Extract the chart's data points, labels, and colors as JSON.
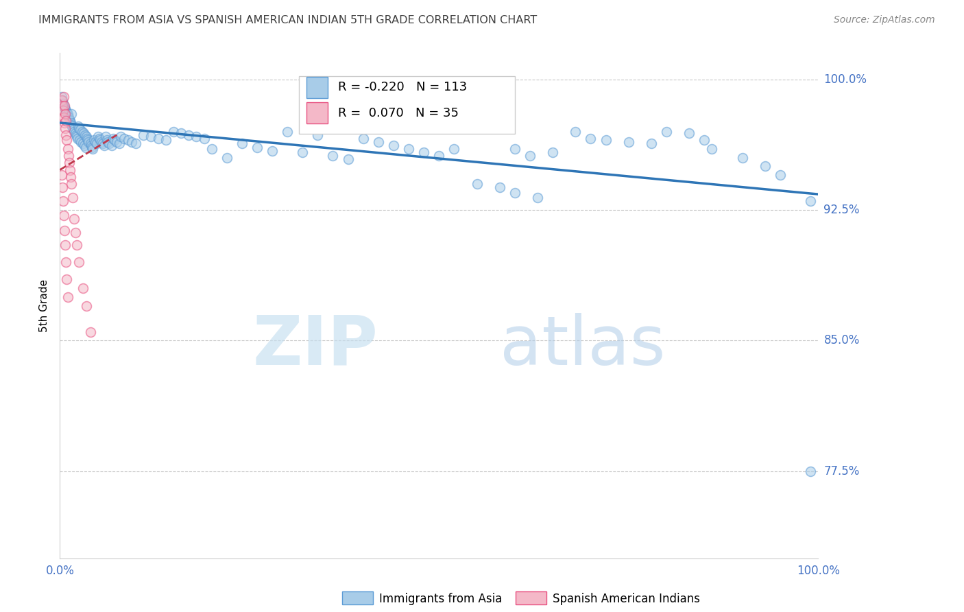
{
  "title": "IMMIGRANTS FROM ASIA VS SPANISH AMERICAN INDIAN 5TH GRADE CORRELATION CHART",
  "source_text": "Source: ZipAtlas.com",
  "ylabel": "5th Grade",
  "watermark_zip": "ZIP",
  "watermark_atlas": "atlas",
  "xlim": [
    0.0,
    1.0
  ],
  "ylim": [
    0.725,
    1.015
  ],
  "yticks": [
    0.775,
    0.85,
    0.925,
    1.0
  ],
  "ytick_labels": [
    "77.5%",
    "85.0%",
    "92.5%",
    "100.0%"
  ],
  "legend_blue_r": "R = -0.220",
  "legend_blue_n": "N = 113",
  "legend_pink_r": "R =  0.070",
  "legend_pink_n": "N = 35",
  "legend_blue_label": "Immigrants from Asia",
  "legend_pink_label": "Spanish American Indians",
  "blue_color": "#a8cce8",
  "blue_edge_color": "#5b9bd5",
  "blue_trend_color": "#2e75b6",
  "pink_color": "#f4b8c8",
  "pink_edge_color": "#e85080",
  "pink_trend_color": "#c0384b",
  "grid_color": "#c8c8c8",
  "title_color": "#404040",
  "right_label_color": "#4472c4",
  "blue_scatter_x": [
    0.002,
    0.003,
    0.004,
    0.005,
    0.006,
    0.007,
    0.008,
    0.009,
    0.01,
    0.01,
    0.011,
    0.012,
    0.013,
    0.014,
    0.015,
    0.015,
    0.016,
    0.017,
    0.018,
    0.019,
    0.02,
    0.021,
    0.022,
    0.023,
    0.024,
    0.025,
    0.026,
    0.027,
    0.028,
    0.029,
    0.03,
    0.031,
    0.032,
    0.033,
    0.034,
    0.035,
    0.036,
    0.037,
    0.038,
    0.04,
    0.041,
    0.042,
    0.043,
    0.045,
    0.047,
    0.048,
    0.05,
    0.052,
    0.053,
    0.055,
    0.057,
    0.058,
    0.06,
    0.062,
    0.063,
    0.065,
    0.068,
    0.07,
    0.072,
    0.075,
    0.078,
    0.08,
    0.085,
    0.09,
    0.095,
    0.1,
    0.11,
    0.12,
    0.13,
    0.14,
    0.15,
    0.16,
    0.17,
    0.18,
    0.19,
    0.2,
    0.22,
    0.24,
    0.26,
    0.28,
    0.3,
    0.32,
    0.34,
    0.36,
    0.38,
    0.4,
    0.42,
    0.44,
    0.46,
    0.48,
    0.5,
    0.52,
    0.55,
    0.58,
    0.6,
    0.62,
    0.65,
    0.68,
    0.7,
    0.72,
    0.75,
    0.78,
    0.8,
    0.83,
    0.85,
    0.86,
    0.9,
    0.93,
    0.95,
    0.99,
    0.6,
    0.63,
    0.99
  ],
  "blue_scatter_y": [
    0.99,
    0.988,
    0.986,
    0.985,
    0.984,
    0.983,
    0.982,
    0.981,
    0.98,
    0.979,
    0.978,
    0.977,
    0.976,
    0.975,
    0.974,
    0.98,
    0.973,
    0.972,
    0.971,
    0.97,
    0.969,
    0.968,
    0.967,
    0.966,
    0.973,
    0.972,
    0.965,
    0.971,
    0.964,
    0.97,
    0.963,
    0.969,
    0.962,
    0.968,
    0.961,
    0.967,
    0.966,
    0.965,
    0.964,
    0.963,
    0.962,
    0.961,
    0.96,
    0.965,
    0.964,
    0.963,
    0.967,
    0.966,
    0.965,
    0.964,
    0.963,
    0.962,
    0.967,
    0.965,
    0.964,
    0.963,
    0.962,
    0.966,
    0.965,
    0.964,
    0.963,
    0.967,
    0.966,
    0.965,
    0.964,
    0.963,
    0.968,
    0.967,
    0.966,
    0.965,
    0.97,
    0.969,
    0.968,
    0.967,
    0.966,
    0.96,
    0.955,
    0.963,
    0.961,
    0.959,
    0.97,
    0.958,
    0.968,
    0.956,
    0.954,
    0.966,
    0.964,
    0.962,
    0.96,
    0.958,
    0.956,
    0.96,
    0.94,
    0.938,
    0.96,
    0.956,
    0.958,
    0.97,
    0.966,
    0.965,
    0.964,
    0.963,
    0.97,
    0.969,
    0.965,
    0.96,
    0.955,
    0.95,
    0.945,
    0.93,
    0.935,
    0.932,
    0.775
  ],
  "pink_scatter_x": [
    0.002,
    0.003,
    0.004,
    0.005,
    0.005,
    0.006,
    0.006,
    0.007,
    0.007,
    0.008,
    0.008,
    0.009,
    0.01,
    0.011,
    0.012,
    0.013,
    0.014,
    0.015,
    0.017,
    0.019,
    0.02,
    0.022,
    0.025,
    0.03,
    0.035,
    0.04,
    0.002,
    0.003,
    0.004,
    0.005,
    0.006,
    0.007,
    0.008,
    0.009,
    0.01
  ],
  "pink_scatter_y": [
    0.988,
    0.985,
    0.982,
    0.99,
    0.978,
    0.975,
    0.985,
    0.972,
    0.98,
    0.968,
    0.976,
    0.965,
    0.96,
    0.956,
    0.952,
    0.948,
    0.944,
    0.94,
    0.932,
    0.92,
    0.912,
    0.905,
    0.895,
    0.88,
    0.87,
    0.855,
    0.945,
    0.938,
    0.93,
    0.922,
    0.913,
    0.905,
    0.895,
    0.885,
    0.875
  ],
  "blue_trend_x0": 0.0,
  "blue_trend_x1": 1.0,
  "blue_trend_y0": 0.975,
  "blue_trend_y1": 0.934,
  "pink_trend_x0": 0.0,
  "pink_trend_x1": 0.075,
  "pink_trend_y0": 0.948,
  "pink_trend_y1": 0.968,
  "marker_size": 100,
  "marker_alpha": 0.55,
  "marker_linewidth": 1.2
}
